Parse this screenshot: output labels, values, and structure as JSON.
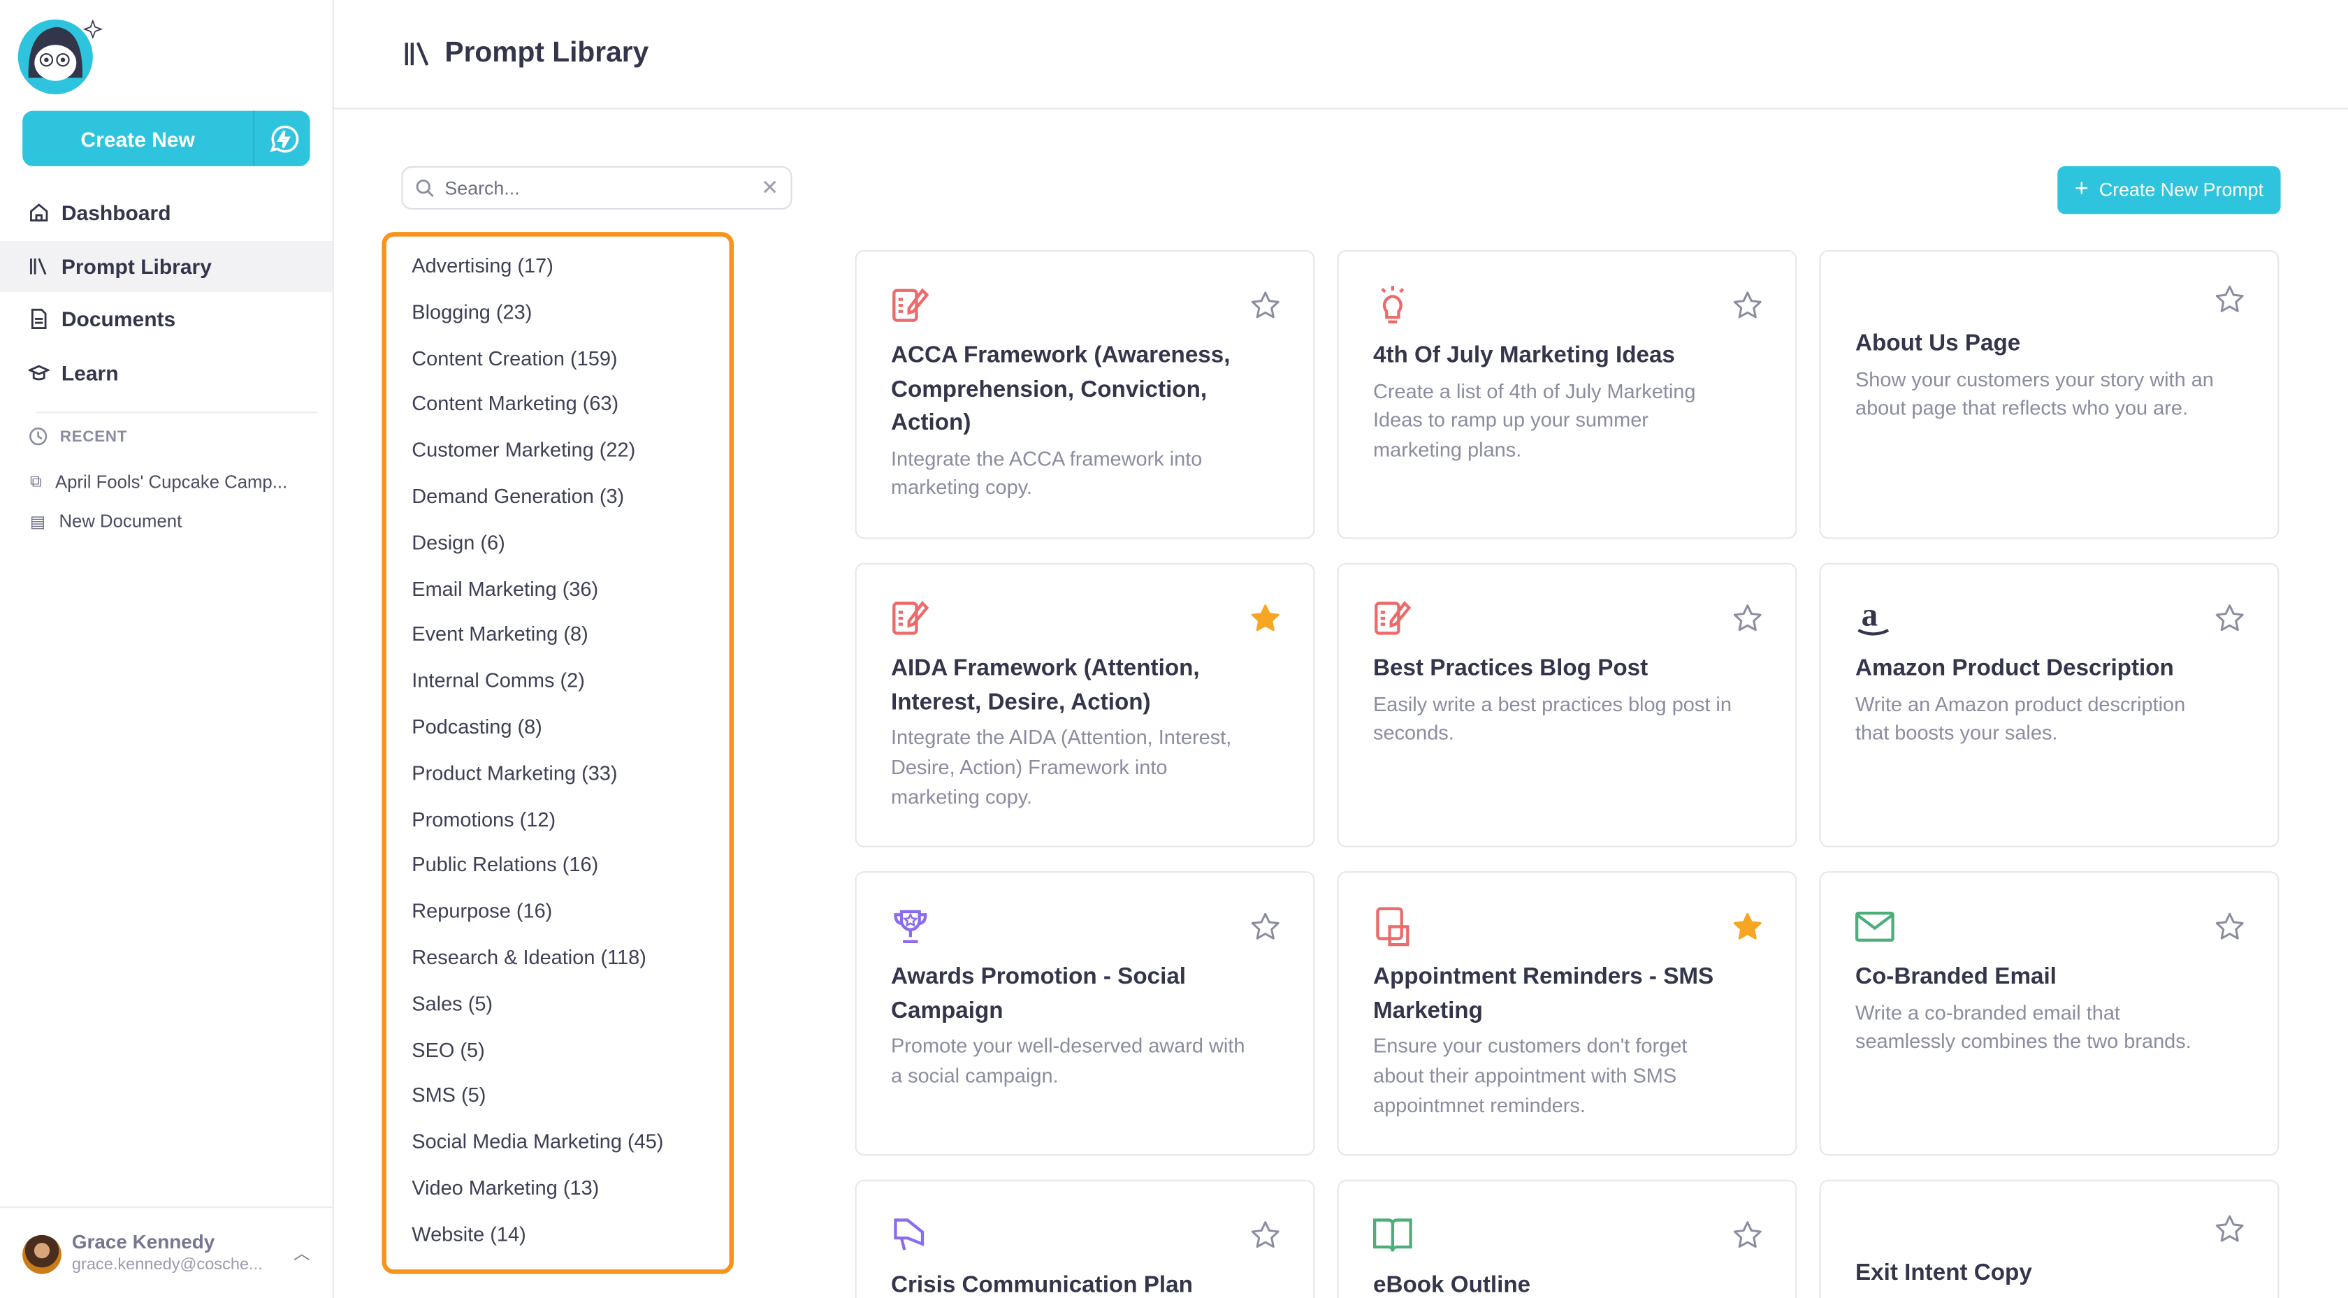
{
  "sidebar": {
    "create_label": "Create New",
    "nav": [
      {
        "label": "Dashboard",
        "icon": "home-icon"
      },
      {
        "label": "Prompt Library",
        "icon": "library-icon",
        "active": true
      },
      {
        "label": "Documents",
        "icon": "document-icon"
      },
      {
        "label": "Learn",
        "icon": "graduation-cap-icon"
      }
    ],
    "recent_heading": "RECENT",
    "recent": [
      "April Fools' Cupcake Camp...",
      "New Document"
    ],
    "user": {
      "name": "Grace Kennedy",
      "email": "grace.kennedy@cosche..."
    }
  },
  "header": {
    "title": "Prompt Library"
  },
  "search": {
    "placeholder": "Search...",
    "value": ""
  },
  "create_prompt_label": "Create New Prompt",
  "categories": [
    "Advertising (17)",
    "Blogging (23)",
    "Content Creation (159)",
    "Content Marketing (63)",
    "Customer Marketing (22)",
    "Demand Generation (3)",
    "Design (6)",
    "Email Marketing (36)",
    "Event Marketing (8)",
    "Internal Comms (2)",
    "Podcasting (8)",
    "Product Marketing (33)",
    "Promotions (12)",
    "Public Relations (16)",
    "Repurpose (16)",
    "Research & Ideation (118)",
    "Sales (5)",
    "SEO (5)",
    "SMS (5)",
    "Social Media Marketing (45)",
    "Video Marketing (13)",
    "Website (14)"
  ],
  "colors": {
    "accent": "#2ec4de",
    "highlight": "#f7931e",
    "star_active": "#f7a623"
  },
  "cards": [
    {
      "title": "ACCA Framework (Awareness, Comprehension, Conviction, Action)",
      "desc": "Integrate the ACCA framework into marketing copy.",
      "icon": "edit-document-icon",
      "color": "#ec6a6a",
      "starred": false
    },
    {
      "title": "4th Of July Marketing Ideas",
      "desc": "Create a list of 4th of July Marketing Ideas to ramp up your summer marketing plans.",
      "icon": "lightbulb-icon",
      "color": "#ec6a6a",
      "starred": false
    },
    {
      "title": "About Us Page",
      "desc": "Show your customers your story with an about page that reflects who you are.",
      "icon": "",
      "starred": false
    },
    {
      "title": "AIDA Framework (Attention, Interest, Desire, Action)",
      "desc": "Integrate the AIDA (Attention, Interest, Desire, Action) Framework into marketing copy.",
      "icon": "edit-document-icon",
      "color": "#ec6a6a",
      "starred": true
    },
    {
      "title": "Best Practices Blog Post",
      "desc": "Easily write a best practices blog post in seconds.",
      "icon": "edit-document-icon",
      "color": "#ec6a6a",
      "starred": false
    },
    {
      "title": "Amazon Product Description",
      "desc": "Write an Amazon product description that boosts your sales.",
      "icon": "amazon-icon",
      "color": "#33354b",
      "starred": false
    },
    {
      "title": "Awards Promotion - Social Campaign",
      "desc": "Promote your well-deserved award with a social campaign.",
      "icon": "trophy-icon",
      "color": "#8b6cf0",
      "starred": false
    },
    {
      "title": "Appointment Reminders - SMS Marketing",
      "desc": "Ensure your customers don't forget about their appointment with SMS appointmnet reminders.",
      "icon": "sms-icon",
      "color": "#ec6a6a",
      "starred": true
    },
    {
      "title": "Co-Branded Email",
      "desc": "Write a co-branded email that seamlessly combines the two brands.",
      "icon": "email-icon",
      "color": "#4caf7a",
      "starred": false
    },
    {
      "title": "Crisis Communication Plan",
      "desc": "",
      "icon": "megaphone-icon",
      "color": "#8b6cf0",
      "starred": false
    },
    {
      "title": "eBook Outline",
      "desc": "",
      "icon": "book-icon",
      "color": "#4caf7a",
      "starred": false
    },
    {
      "title": "Exit Intent Copy",
      "desc": "",
      "icon": "",
      "starred": false
    }
  ]
}
